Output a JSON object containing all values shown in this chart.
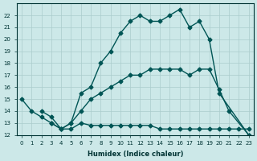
{
  "xlabel": "Humidex (Indice chaleur)",
  "bg_color": "#cce8e8",
  "grid_color": "#aacccc",
  "line_color": "#005555",
  "line1_x": [
    0,
    1,
    2,
    3,
    4,
    5,
    6,
    7,
    8,
    9,
    10,
    11,
    12,
    13,
    14,
    15,
    16,
    17,
    18,
    19,
    20,
    23
  ],
  "line1_y": [
    15,
    14,
    13.5,
    13,
    12.5,
    13,
    15.5,
    16,
    18,
    19,
    20.5,
    21.5,
    22,
    21.5,
    21.5,
    22,
    22.5,
    21,
    21.5,
    20,
    15.5,
    12
  ],
  "line2_x": [
    3,
    4,
    5,
    6,
    7,
    8,
    9,
    10,
    11,
    12,
    13,
    14,
    15,
    16,
    17,
    18,
    19,
    20,
    21,
    22,
    23
  ],
  "line2_y": [
    13,
    12.5,
    12.5,
    13,
    12.8,
    12.8,
    12.8,
    12.8,
    12.8,
    12.8,
    12.8,
    12.5,
    12.5,
    12.5,
    12.5,
    12.5,
    12.5,
    12.5,
    12.5,
    12.5,
    12.5
  ],
  "line3_x": [
    2,
    3,
    4,
    5,
    6,
    7,
    8,
    9,
    10,
    11,
    12,
    13,
    14,
    15,
    16,
    17,
    18,
    19,
    20,
    21,
    23
  ],
  "line3_y": [
    14,
    13.5,
    12.5,
    13,
    14,
    15,
    15.5,
    16,
    16.5,
    17,
    17,
    17.5,
    17.5,
    17.5,
    17.5,
    17,
    17.5,
    17.5,
    15.8,
    14,
    12
  ],
  "xlim": [
    -0.5,
    23.5
  ],
  "ylim": [
    12,
    23
  ],
  "yticks": [
    12,
    13,
    14,
    15,
    16,
    17,
    18,
    19,
    20,
    21,
    22
  ],
  "xticks": [
    0,
    1,
    2,
    3,
    4,
    5,
    6,
    7,
    8,
    9,
    10,
    11,
    12,
    13,
    14,
    15,
    16,
    17,
    18,
    19,
    20,
    21,
    22,
    23
  ],
  "marker": "D",
  "markersize": 2.5
}
